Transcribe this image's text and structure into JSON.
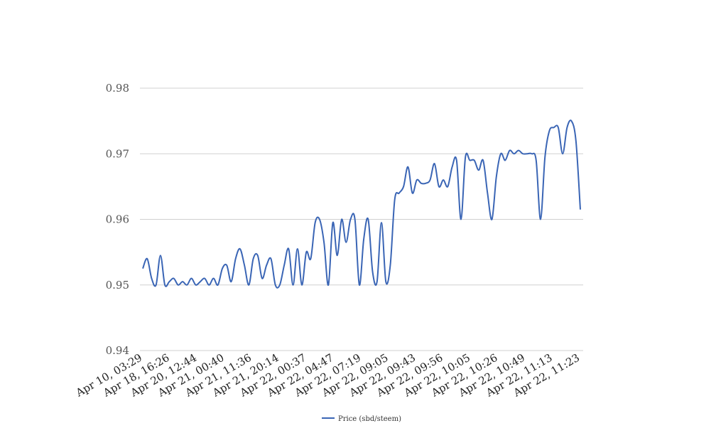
{
  "chart_data": {
    "type": "line",
    "title": "",
    "xlabel": "",
    "ylabel": "",
    "ylim": [
      0.94,
      0.98
    ],
    "yticks": [
      "0.94",
      "0.95",
      "0.96",
      "0.97",
      "0.98"
    ],
    "ytick_values": [
      0.94,
      0.95,
      0.96,
      0.97,
      0.98
    ],
    "xtick_labels": [
      "Apr 10, 03:29",
      "Apr 18, 16:26",
      "Apr 20, 12:44",
      "Apr 21, 00:40",
      "Apr 21, 11:36",
      "Apr 21, 20:14",
      "Apr 22, 00:37",
      "Apr 22, 04:47",
      "Apr 22, 07:19",
      "Apr 22, 09:05",
      "Apr 22, 09:43",
      "Apr 22, 09:56",
      "Apr 22, 10:05",
      "Apr 22, 10:26",
      "Apr 22, 10:49",
      "Apr 22, 11:13",
      "Apr 22, 11:23"
    ],
    "grid": true,
    "legend_position": "bottom",
    "series": [
      {
        "name": "Price (sbd/steem)",
        "color": "#3a65b5",
        "values": [
          0.9525,
          0.954,
          0.951,
          0.95,
          0.9545,
          0.95,
          0.9505,
          0.951,
          0.95,
          0.9505,
          0.95,
          0.951,
          0.95,
          0.9505,
          0.951,
          0.95,
          0.951,
          0.95,
          0.9525,
          0.953,
          0.9505,
          0.954,
          0.9555,
          0.953,
          0.95,
          0.954,
          0.9545,
          0.951,
          0.953,
          0.954,
          0.95,
          0.95,
          0.953,
          0.9555,
          0.95,
          0.9555,
          0.95,
          0.955,
          0.954,
          0.9595,
          0.96,
          0.9565,
          0.95,
          0.9595,
          0.9545,
          0.96,
          0.9565,
          0.96,
          0.96,
          0.95,
          0.957,
          0.96,
          0.952,
          0.9505,
          0.9595,
          0.9505,
          0.953,
          0.963,
          0.964,
          0.965,
          0.968,
          0.964,
          0.966,
          0.9655,
          0.9655,
          0.966,
          0.9685,
          0.965,
          0.966,
          0.965,
          0.968,
          0.969,
          0.96,
          0.9695,
          0.969,
          0.969,
          0.9675,
          0.969,
          0.964,
          0.96,
          0.9665,
          0.97,
          0.969,
          0.9705,
          0.97,
          0.9705,
          0.97,
          0.97,
          0.97,
          0.969,
          0.96,
          0.9695,
          0.9735,
          0.974,
          0.974,
          0.97,
          0.974,
          0.975,
          0.972,
          0.9615
        ]
      }
    ]
  }
}
